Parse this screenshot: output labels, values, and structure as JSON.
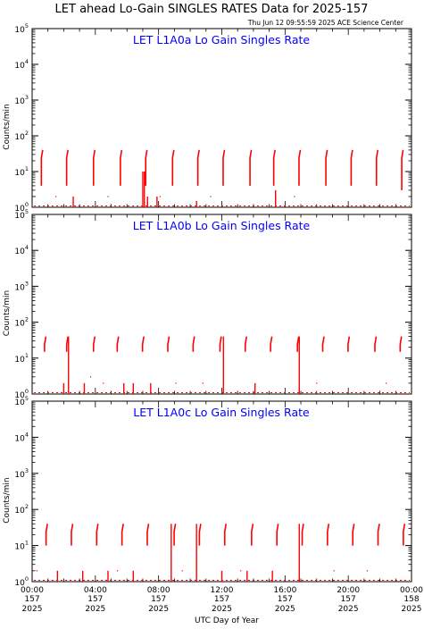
{
  "header": {
    "title": "LET ahead Lo-Gain SINGLES RATES Data for 2025-157",
    "timestamp": "Thu Jun 12 09:55:59 2025 ACE Science Center"
  },
  "colors": {
    "data": "#ff0000",
    "panel_title": "#0000ff",
    "axis": "#000000"
  },
  "chart_data": [
    {
      "type": "line",
      "title": "LET L1A0a Lo Gain Singles Rate",
      "ylabel": "Counts/min",
      "xlabel": "UTC Day of Year",
      "yscale": "log",
      "ylim": [
        1,
        100000
      ],
      "xlim": [
        0,
        24
      ],
      "x_unit": "hours UTC on day 157",
      "bursts": [
        {
          "t": 0.6,
          "lo": 4,
          "hi": 40
        },
        {
          "t": 2.2,
          "lo": 4,
          "hi": 40
        },
        {
          "t": 3.9,
          "lo": 4,
          "hi": 40
        },
        {
          "t": 5.6,
          "lo": 4,
          "hi": 40
        },
        {
          "t": 7.2,
          "lo": 4,
          "hi": 40
        },
        {
          "t": 8.9,
          "lo": 4,
          "hi": 40
        },
        {
          "t": 10.5,
          "lo": 4,
          "hi": 40
        },
        {
          "t": 12.1,
          "lo": 4,
          "hi": 40
        },
        {
          "t": 13.8,
          "lo": 4,
          "hi": 40
        },
        {
          "t": 15.3,
          "lo": 4,
          "hi": 40
        },
        {
          "t": 16.9,
          "lo": 4,
          "hi": 40
        },
        {
          "t": 18.6,
          "lo": 4,
          "hi": 40
        },
        {
          "t": 20.2,
          "lo": 4,
          "hi": 40
        },
        {
          "t": 21.8,
          "lo": 4,
          "hi": 40
        },
        {
          "t": 23.4,
          "lo": 3,
          "hi": 40
        }
      ],
      "spikes": [
        {
          "t": 2.6,
          "hi": 2
        },
        {
          "t": 7.0,
          "hi": 10
        },
        {
          "t": 7.1,
          "hi": 10
        },
        {
          "t": 7.3,
          "hi": 2
        },
        {
          "t": 7.9,
          "hi": 2
        },
        {
          "t": 10.4,
          "hi": 1.5
        },
        {
          "t": 15.4,
          "hi": 3
        }
      ],
      "dots": [
        {
          "t": 0.2,
          "v": 2
        },
        {
          "t": 1.5,
          "v": 2
        },
        {
          "t": 4.8,
          "v": 2
        },
        {
          "t": 8.1,
          "v": 2
        },
        {
          "t": 11.3,
          "v": 2
        },
        {
          "t": 16.6,
          "v": 2
        }
      ]
    },
    {
      "type": "line",
      "title": "LET L1A0b Lo Gain Singles Rate",
      "ylabel": "Counts/min",
      "xlabel": "UTC Day of Year",
      "yscale": "log",
      "ylim": [
        1,
        100000
      ],
      "xlim": [
        0,
        24
      ],
      "x_unit": "hours UTC on day 157",
      "bursts": [
        {
          "t": 0.8,
          "lo": 15,
          "hi": 40
        },
        {
          "t": 2.2,
          "lo": 15,
          "hi": 40
        },
        {
          "t": 3.9,
          "lo": 15,
          "hi": 40
        },
        {
          "t": 5.4,
          "lo": 15,
          "hi": 40
        },
        {
          "t": 7.0,
          "lo": 15,
          "hi": 40
        },
        {
          "t": 8.6,
          "lo": 15,
          "hi": 40
        },
        {
          "t": 10.2,
          "lo": 15,
          "hi": 40
        },
        {
          "t": 11.9,
          "lo": 15,
          "hi": 40
        },
        {
          "t": 13.5,
          "lo": 15,
          "hi": 40
        },
        {
          "t": 15.1,
          "lo": 15,
          "hi": 40
        },
        {
          "t": 16.8,
          "lo": 15,
          "hi": 40
        },
        {
          "t": 18.4,
          "lo": 15,
          "hi": 40
        },
        {
          "t": 20.0,
          "lo": 15,
          "hi": 40
        },
        {
          "t": 21.7,
          "lo": 15,
          "hi": 40
        },
        {
          "t": 23.3,
          "lo": 15,
          "hi": 40
        }
      ],
      "spikes": [
        {
          "t": 2.0,
          "hi": 2
        },
        {
          "t": 2.3,
          "hi": 40
        },
        {
          "t": 3.3,
          "hi": 2
        },
        {
          "t": 5.8,
          "hi": 2
        },
        {
          "t": 6.4,
          "hi": 2
        },
        {
          "t": 7.5,
          "hi": 2
        },
        {
          "t": 12.1,
          "hi": 40
        },
        {
          "t": 14.1,
          "hi": 2
        },
        {
          "t": 16.9,
          "hi": 40
        }
      ],
      "dots": [
        {
          "t": 3.7,
          "v": 3
        },
        {
          "t": 4.5,
          "v": 2
        },
        {
          "t": 9.1,
          "v": 2
        },
        {
          "t": 10.8,
          "v": 2
        },
        {
          "t": 18.0,
          "v": 2
        },
        {
          "t": 22.4,
          "v": 2
        }
      ]
    },
    {
      "type": "line",
      "title": "LET L1A0c Lo Gain Singles Rate",
      "ylabel": "Counts/min",
      "xlabel": "UTC Day of Year",
      "yscale": "log",
      "ylim": [
        1,
        100000
      ],
      "xlim": [
        0,
        24
      ],
      "x_unit": "hours UTC on day 157",
      "bursts": [
        {
          "t": 0.9,
          "lo": 10,
          "hi": 40
        },
        {
          "t": 2.5,
          "lo": 10,
          "hi": 40
        },
        {
          "t": 4.1,
          "lo": 10,
          "hi": 40
        },
        {
          "t": 5.7,
          "lo": 10,
          "hi": 40
        },
        {
          "t": 7.3,
          "lo": 10,
          "hi": 40
        },
        {
          "t": 9.0,
          "lo": 10,
          "hi": 40
        },
        {
          "t": 10.6,
          "lo": 10,
          "hi": 40
        },
        {
          "t": 12.2,
          "lo": 10,
          "hi": 40
        },
        {
          "t": 13.9,
          "lo": 10,
          "hi": 40
        },
        {
          "t": 15.5,
          "lo": 10,
          "hi": 40
        },
        {
          "t": 17.1,
          "lo": 10,
          "hi": 40
        },
        {
          "t": 18.7,
          "lo": 10,
          "hi": 40
        },
        {
          "t": 20.3,
          "lo": 10,
          "hi": 40
        },
        {
          "t": 21.9,
          "lo": 10,
          "hi": 40
        },
        {
          "t": 23.5,
          "lo": 10,
          "hi": 40
        }
      ],
      "spikes": [
        {
          "t": 1.6,
          "hi": 2
        },
        {
          "t": 3.2,
          "hi": 2
        },
        {
          "t": 4.8,
          "hi": 2
        },
        {
          "t": 6.4,
          "hi": 2
        },
        {
          "t": 8.8,
          "hi": 40
        },
        {
          "t": 10.4,
          "hi": 40
        },
        {
          "t": 12.0,
          "hi": 2
        },
        {
          "t": 13.6,
          "hi": 2
        },
        {
          "t": 15.2,
          "hi": 2
        },
        {
          "t": 16.9,
          "hi": 40
        }
      ],
      "dots": [
        {
          "t": 0.3,
          "v": 2
        },
        {
          "t": 5.4,
          "v": 2
        },
        {
          "t": 9.5,
          "v": 2
        },
        {
          "t": 13.2,
          "v": 2
        },
        {
          "t": 19.1,
          "v": 2
        },
        {
          "t": 21.2,
          "v": 2
        }
      ]
    }
  ],
  "x_ticks": [
    {
      "t": 0,
      "time": "00:00",
      "doy": "157",
      "year": "2025"
    },
    {
      "t": 4,
      "time": "04:00",
      "doy": "157",
      "year": "2025"
    },
    {
      "t": 8,
      "time": "08:00",
      "doy": "157",
      "year": "2025"
    },
    {
      "t": 12,
      "time": "12:00",
      "doy": "157",
      "year": "2025"
    },
    {
      "t": 16,
      "time": "16:00",
      "doy": "157",
      "year": "2025"
    },
    {
      "t": 20,
      "time": "20:00",
      "doy": "157",
      "year": "2025"
    },
    {
      "t": 24,
      "time": "00:00",
      "doy": "158",
      "year": "2025"
    }
  ],
  "y_ticks": [
    {
      "exp": 0,
      "base": "10",
      "sup": "0"
    },
    {
      "exp": 1,
      "base": "10",
      "sup": "1"
    },
    {
      "exp": 2,
      "base": "10",
      "sup": "2"
    },
    {
      "exp": 3,
      "base": "10",
      "sup": "3"
    },
    {
      "exp": 4,
      "base": "10",
      "sup": "4"
    },
    {
      "exp": 5,
      "base": "10",
      "sup": "5"
    }
  ],
  "xlabel": "UTC Day of Year"
}
